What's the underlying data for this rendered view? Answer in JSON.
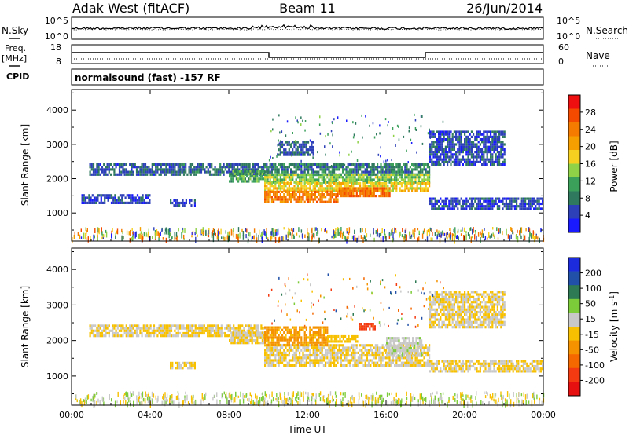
{
  "header": {
    "station": "Adak West (fitACF)",
    "beam": "Beam 11",
    "date": "26/Jun/2014"
  },
  "noise_panel": {
    "left_label": "N.Sky",
    "left_ticks": [
      "10^5",
      "10^0"
    ],
    "right_label": "N.Search",
    "right_ticks": [
      "10^5",
      "10^0"
    ]
  },
  "freq_panel": {
    "left_label_1": "Freq.",
    "left_label_2": "[MHz]",
    "left_ticks": [
      "18",
      "8"
    ],
    "right_label": "Nave",
    "right_ticks": [
      "60",
      "0"
    ],
    "cpid_label": "CPID",
    "cpid_text": "normalsound (fast) -157 RF"
  },
  "colors": {
    "power_scale": [
      "#1a1aff",
      "#2e40b8",
      "#2f7a5e",
      "#3aa05a",
      "#8fd248",
      "#f6d020",
      "#f5a000",
      "#f57a00",
      "#f44a00",
      "#ee1010"
    ],
    "velocity_scale": [
      "#1c2bdc",
      "#2050a8",
      "#2e7a54",
      "#7ccc3a",
      "#c8c8c8",
      "#f7c000",
      "#f59200",
      "#f56800",
      "#f33a10",
      "#e61010"
    ]
  },
  "chart_data": [
    {
      "type": "heatmap",
      "name": "power",
      "ylabel": "Slant Range [km]",
      "xlabel": "",
      "xlim_hours": [
        0,
        24
      ],
      "ylim_km": [
        180,
        4600
      ],
      "x_tick_labels": [
        "00:00",
        "04:00",
        "08:00",
        "12:00",
        "16:00",
        "20:00",
        "00:00"
      ],
      "y_ticks": [
        1000,
        2000,
        3000,
        4000
      ],
      "y_tick_labels": [
        "1000",
        "2000",
        "3000",
        "4000"
      ],
      "colorbar": {
        "label": "Power [dB]",
        "tick_labels": [
          "4",
          "8",
          "12",
          "16",
          "20",
          "24",
          "28"
        ],
        "range": [
          0,
          32
        ]
      },
      "echo_bands": [
        {
          "t": [
            0.9,
            5.5
          ],
          "range_km": [
            2150,
            2450
          ],
          "value": 6
        },
        {
          "t": [
            5.5,
            9.8
          ],
          "range_km": [
            2100,
            2450
          ],
          "value": 7
        },
        {
          "t": [
            8.0,
            10.0
          ],
          "range_km": [
            1950,
            2250
          ],
          "value": 11
        },
        {
          "t": [
            9.8,
            18.2
          ],
          "range_km": [
            2150,
            2450
          ],
          "value": 8
        },
        {
          "t": [
            9.8,
            18.2
          ],
          "range_km": [
            1900,
            2150
          ],
          "value": 14
        },
        {
          "t": [
            9.8,
            18.2
          ],
          "range_km": [
            1650,
            1900
          ],
          "value": 18
        },
        {
          "t": [
            9.8,
            13.5
          ],
          "range_km": [
            1350,
            1650
          ],
          "value": 24
        },
        {
          "t": [
            13.5,
            16.2
          ],
          "range_km": [
            1500,
            1750
          ],
          "value": 25
        },
        {
          "t": [
            10.5,
            12.3
          ],
          "range_km": [
            2700,
            3100
          ],
          "value": 6
        },
        {
          "t": [
            18.2,
            22.0
          ],
          "range_km": [
            2400,
            3400
          ],
          "value": 5
        },
        {
          "t": [
            18.2,
            24.0
          ],
          "range_km": [
            1100,
            1450
          ],
          "value": 5
        },
        {
          "t": [
            5.0,
            6.3
          ],
          "range_km": [
            1250,
            1400
          ],
          "value": 5
        },
        {
          "t": [
            0.5,
            4.0
          ],
          "range_km": [
            1300,
            1550
          ],
          "value": 5
        }
      ]
    },
    {
      "type": "heatmap",
      "name": "velocity",
      "ylabel": "Slant Range [km]",
      "xlabel": "Time UT",
      "xlim_hours": [
        0,
        24
      ],
      "ylim_km": [
        180,
        4600
      ],
      "x_tick_labels": [
        "00:00",
        "04:00",
        "08:00",
        "12:00",
        "16:00",
        "20:00",
        "00:00"
      ],
      "y_ticks": [
        1000,
        2000,
        3000,
        4000
      ],
      "y_tick_labels": [
        "1000",
        "2000",
        "3000",
        "4000"
      ],
      "colorbar": {
        "label_main": "Velocity [m s",
        "label_sup": "-1",
        "label_end": "]",
        "tick_labels": [
          "200",
          "100",
          "50",
          "15",
          "-15",
          "-50",
          "-100",
          "-200"
        ],
        "range": [
          -250,
          250
        ]
      },
      "echo_bands": [
        {
          "t": [
            0.9,
            9.8
          ],
          "range_km": [
            2100,
            2450
          ],
          "value": 0
        },
        {
          "t": [
            8.0,
            10.0
          ],
          "range_km": [
            1950,
            2250
          ],
          "value": 0
        },
        {
          "t": [
            9.8,
            18.2
          ],
          "range_km": [
            1300,
            1900
          ],
          "value": 0
        },
        {
          "t": [
            9.8,
            13.0
          ],
          "range_km": [
            1850,
            2400
          ],
          "value": -60
        },
        {
          "t": [
            13.0,
            14.5
          ],
          "range_km": [
            1950,
            2150
          ],
          "value": -35
        },
        {
          "t": [
            14.6,
            15.4
          ],
          "range_km": [
            2350,
            2500
          ],
          "value": -180
        },
        {
          "t": [
            16.0,
            17.8
          ],
          "range_km": [
            1550,
            2100
          ],
          "value": 40
        },
        {
          "t": [
            18.2,
            22.0
          ],
          "range_km": [
            2400,
            3400
          ],
          "value": 0
        },
        {
          "t": [
            18.2,
            24.0
          ],
          "range_km": [
            1100,
            1450
          ],
          "value": 0
        },
        {
          "t": [
            5.0,
            6.3
          ],
          "range_km": [
            1250,
            1400
          ],
          "value": 0
        }
      ]
    }
  ]
}
